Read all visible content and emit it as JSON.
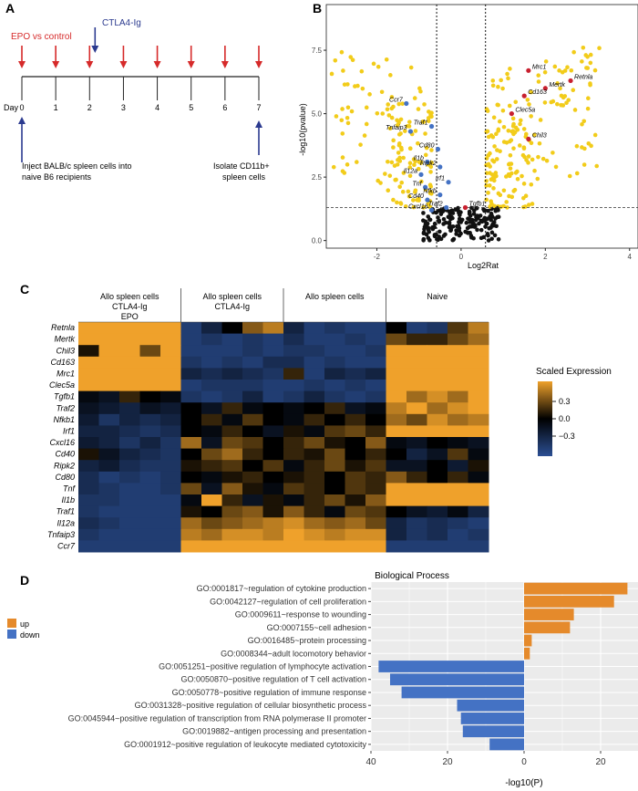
{
  "panel_labels": [
    "A",
    "B",
    "C",
    "D"
  ],
  "colors": {
    "red_arrow": "#d62a2a",
    "blue_arrow": "#2b3a8f",
    "point_sig": "#f2cc1a",
    "point_ns": "#111111",
    "point_blue": "#4472c4",
    "point_red": "#c8202f",
    "up": "#e58a2b",
    "down": "#4472c4",
    "heat_high": "#efa12b",
    "heat_mid": "#000000",
    "heat_low": "#2b4f93"
  },
  "timeline": {
    "top_red_label": "EPO vs control",
    "top_blue_label": "CTLA4-Ig",
    "day_label": "Day",
    "days": [
      "0",
      "1",
      "2",
      "3",
      "4",
      "5",
      "6",
      "7"
    ],
    "bottom_left_label": [
      "Inject BALB/c spleen cells into",
      "naive B6 recipients"
    ],
    "bottom_right_label": [
      "Isolate CD11b+",
      "spleen cells"
    ]
  },
  "chart_data": [
    {
      "type": "scatter",
      "panel": "B",
      "xlabel": "Log2Rat",
      "ylabel": "-log10(pvalue)",
      "xlim": [
        -3.2,
        4.2
      ],
      "ylim": [
        -0.3,
        9.3
      ],
      "x_ticks": [
        "-2",
        "0",
        "2",
        "4"
      ],
      "y_ticks": [
        "0.0",
        "2.5",
        "5.0",
        "7.5"
      ],
      "vlines": [
        -0.58,
        0.58
      ],
      "hline": 1.3,
      "labeled_points": [
        {
          "label": "Ccr7",
          "x": -1.3,
          "y": 5.4,
          "color": "blue"
        },
        {
          "label": "Tnfaip3",
          "x": -1.2,
          "y": 4.3,
          "color": "blue"
        },
        {
          "label": "Traf1",
          "x": -0.7,
          "y": 4.5,
          "color": "blue"
        },
        {
          "label": "Cd80",
          "x": -0.55,
          "y": 3.6,
          "color": "blue"
        },
        {
          "label": "Il1b",
          "x": -0.8,
          "y": 3.1,
          "color": "blue"
        },
        {
          "label": "Ripk2",
          "x": -0.5,
          "y": 2.9,
          "color": "blue"
        },
        {
          "label": "Il12a",
          "x": -0.95,
          "y": 2.6,
          "color": "blue"
        },
        {
          "label": "Irf1",
          "x": -0.3,
          "y": 2.3,
          "color": "blue"
        },
        {
          "label": "Tnf",
          "x": -0.85,
          "y": 2.1,
          "color": "blue"
        },
        {
          "label": "Nfkb",
          "x": -0.5,
          "y": 1.8,
          "color": "blue"
        },
        {
          "label": "Cd40",
          "x": -0.8,
          "y": 1.6,
          "color": "blue"
        },
        {
          "label": "Traf2",
          "x": -0.35,
          "y": 1.3,
          "color": "blue"
        },
        {
          "label": "Tgfb1",
          "x": 0.1,
          "y": 1.3,
          "color": "red"
        },
        {
          "label": "Cxcl16",
          "x": -0.7,
          "y": 1.2,
          "color": "blue"
        },
        {
          "label": "Mrc1",
          "x": 1.6,
          "y": 6.7,
          "color": "red"
        },
        {
          "label": "Retnla",
          "x": 2.6,
          "y": 6.3,
          "color": "red"
        },
        {
          "label": "Mertk",
          "x": 2.0,
          "y": 6.0,
          "color": "red"
        },
        {
          "label": "Cd163",
          "x": 1.5,
          "y": 5.7,
          "color": "red"
        },
        {
          "label": "Clec5a",
          "x": 1.2,
          "y": 5.0,
          "color": "red"
        },
        {
          "label": "Chil3",
          "x": 1.6,
          "y": 4.0,
          "color": "red"
        }
      ]
    },
    {
      "type": "heatmap",
      "panel": "C",
      "group_labels": [
        [
          "Allo spleen cells",
          "CTLA4-Ig",
          "EPO"
        ],
        [
          "Allo spleen cells",
          "CTLA4-Ig"
        ],
        [
          "Allo spleen cells"
        ],
        [
          "Naive"
        ]
      ],
      "columns_per_group": 5,
      "genes": [
        "Retnla",
        "Mertk",
        "Chil3",
        "Cd163",
        "Mrc1",
        "Clec5a",
        "Tgfb1",
        "Traf2",
        "Nfkb1",
        "Irf1",
        "Cxcl16",
        "Cd40",
        "Ripk2",
        "Cd80",
        "Tnf",
        "Il1b",
        "Traf1",
        "Il12a",
        "Tnfaip3",
        "Ccr7"
      ],
      "legend_title": "Scaled Expression",
      "legend_ticks": [
        "0.3",
        "0.0",
        "−0.3"
      ],
      "values": [
        [
          0.45,
          0.45,
          0.45,
          0.45,
          0.45,
          -0.35,
          -0.2,
          0.0,
          0.25,
          0.35,
          -0.2,
          -0.35,
          -0.3,
          -0.35,
          -0.35,
          0.0,
          -0.35,
          -0.3,
          0.15,
          0.35
        ],
        [
          0.45,
          0.45,
          0.45,
          0.45,
          0.45,
          -0.35,
          -0.3,
          -0.35,
          -0.3,
          -0.35,
          -0.25,
          -0.35,
          -0.35,
          -0.3,
          -0.35,
          0.2,
          0.1,
          0.1,
          0.2,
          0.3
        ],
        [
          0.05,
          0.45,
          0.45,
          0.2,
          0.45,
          -0.35,
          -0.35,
          -0.35,
          -0.3,
          -0.35,
          -0.3,
          -0.3,
          -0.35,
          -0.35,
          -0.3,
          0.45,
          0.45,
          0.45,
          0.45,
          0.45
        ],
        [
          0.45,
          0.45,
          0.45,
          0.45,
          0.45,
          -0.3,
          -0.35,
          -0.3,
          -0.35,
          -0.25,
          -0.25,
          -0.35,
          -0.3,
          -0.35,
          -0.35,
          0.45,
          0.45,
          0.45,
          0.45,
          0.45
        ],
        [
          0.45,
          0.45,
          0.45,
          0.45,
          0.45,
          -0.2,
          -0.25,
          -0.2,
          -0.25,
          -0.3,
          0.1,
          -0.35,
          -0.2,
          -0.25,
          -0.2,
          0.45,
          0.45,
          0.45,
          0.45,
          0.45
        ],
        [
          0.45,
          0.45,
          0.45,
          0.45,
          0.45,
          -0.35,
          -0.3,
          -0.3,
          -0.3,
          -0.35,
          -0.35,
          -0.3,
          -0.35,
          -0.3,
          -0.35,
          0.45,
          0.45,
          0.45,
          0.45,
          0.45
        ],
        [
          -0.05,
          -0.1,
          0.1,
          0.0,
          -0.05,
          -0.3,
          -0.35,
          -0.3,
          -0.2,
          -0.35,
          -0.3,
          -0.2,
          -0.3,
          -0.35,
          -0.3,
          0.45,
          0.3,
          0.4,
          0.3,
          0.45
        ],
        [
          -0.1,
          -0.15,
          -0.2,
          -0.1,
          -0.15,
          0.0,
          -0.1,
          0.1,
          -0.05,
          0.0,
          -0.05,
          0.0,
          0.1,
          -0.1,
          -0.05,
          0.35,
          0.45,
          0.3,
          0.4,
          0.45
        ],
        [
          -0.15,
          -0.3,
          -0.2,
          -0.25,
          -0.2,
          0.0,
          0.1,
          -0.05,
          0.15,
          0.0,
          -0.05,
          0.1,
          0.0,
          0.1,
          0.0,
          0.3,
          0.2,
          0.4,
          0.3,
          0.35
        ],
        [
          -0.2,
          -0.2,
          -0.25,
          -0.3,
          -0.25,
          0.0,
          -0.05,
          0.1,
          0.0,
          -0.1,
          0.05,
          -0.05,
          0.15,
          0.2,
          0.1,
          0.45,
          0.45,
          0.45,
          0.45,
          0.45
        ],
        [
          -0.15,
          -0.2,
          -0.3,
          -0.2,
          -0.3,
          0.3,
          -0.1,
          0.2,
          0.15,
          0.0,
          0.1,
          0.2,
          0.05,
          0.0,
          0.25,
          -0.05,
          -0.1,
          0.0,
          -0.05,
          -0.1
        ],
        [
          0.05,
          -0.1,
          -0.2,
          -0.25,
          -0.3,
          0.0,
          0.2,
          0.3,
          0.1,
          0.0,
          0.1,
          0.05,
          0.2,
          0.0,
          0.1,
          0.0,
          -0.2,
          -0.1,
          0.15,
          -0.05
        ],
        [
          -0.2,
          -0.15,
          -0.25,
          -0.3,
          -0.3,
          0.05,
          0.1,
          0.15,
          0.0,
          0.15,
          -0.05,
          0.1,
          0.2,
          0.05,
          0.15,
          -0.1,
          -0.1,
          0.0,
          -0.15,
          0.05
        ],
        [
          -0.25,
          -0.35,
          -0.3,
          -0.35,
          -0.3,
          0.0,
          -0.05,
          0.05,
          0.1,
          0.0,
          0.05,
          0.1,
          0.0,
          0.15,
          0.1,
          0.25,
          0.1,
          0.0,
          0.1,
          -0.05
        ],
        [
          -0.25,
          -0.3,
          -0.35,
          -0.35,
          -0.3,
          0.2,
          -0.1,
          0.25,
          0.05,
          -0.05,
          0.15,
          0.1,
          0.0,
          0.15,
          0.1,
          0.45,
          0.45,
          0.45,
          0.45,
          0.45
        ],
        [
          -0.3,
          -0.3,
          -0.35,
          -0.35,
          -0.35,
          -0.05,
          0.45,
          0.1,
          -0.1,
          0.05,
          -0.05,
          0.1,
          0.2,
          0.05,
          0.25,
          0.45,
          0.45,
          0.45,
          0.45,
          0.45
        ],
        [
          -0.3,
          -0.35,
          -0.35,
          -0.35,
          -0.35,
          0.05,
          0.0,
          0.2,
          0.25,
          0.05,
          0.25,
          0.1,
          -0.05,
          0.2,
          0.15,
          0.0,
          -0.1,
          -0.15,
          -0.05,
          -0.2
        ],
        [
          -0.25,
          -0.3,
          -0.35,
          -0.35,
          -0.35,
          0.3,
          0.2,
          0.25,
          0.3,
          0.35,
          0.4,
          0.3,
          0.25,
          0.3,
          0.2,
          -0.2,
          -0.3,
          -0.25,
          -0.3,
          -0.35
        ],
        [
          -0.3,
          -0.35,
          -0.35,
          -0.35,
          -0.35,
          0.35,
          0.3,
          0.4,
          0.4,
          0.35,
          0.45,
          0.4,
          0.35,
          0.4,
          0.4,
          -0.2,
          -0.3,
          -0.25,
          -0.35,
          -0.3
        ],
        [
          -0.35,
          -0.35,
          -0.35,
          -0.35,
          -0.35,
          0.45,
          0.45,
          0.45,
          0.45,
          0.45,
          0.45,
          0.45,
          0.45,
          0.45,
          0.45,
          -0.35,
          -0.35,
          -0.35,
          -0.35,
          -0.35
        ]
      ]
    },
    {
      "type": "bar",
      "panel": "D",
      "orientation": "horizontal",
      "title": "Biological Process",
      "xlabel": "-log10(P)",
      "x_ticks": [
        "40",
        "20",
        "0",
        "20"
      ],
      "legend": [
        {
          "name": "up",
          "color": "up"
        },
        {
          "name": "down",
          "color": "down"
        }
      ],
      "categories": [
        "GO:0001817~regulation of cytokine production",
        "GO:0042127~regulation of cell proliferation",
        "GO:0009611~response to wounding",
        "GO:0007155~cell adhesion",
        "GO:0016485~protein processing",
        "GO:0008344~adult locomotory behavior",
        "GO:0051251~positive regulation of lymphocyte activation",
        "GO:0050870~positive regulation of T cell activation",
        "GO:0050778~positive regulation of immune response",
        "GO:0031328~positive regulation of cellular biosynthetic process",
        "GO:0045944~positive regulation of transcription from RNA polymerase II promoter",
        "GO:0019882~antigen processing and presentation",
        "GO:0001912~positive regulation of leukocyte mediated cytotoxicity"
      ],
      "values": [
        27,
        23.5,
        13,
        12,
        2,
        1.5,
        -38,
        -35,
        -32,
        -17.5,
        -16.5,
        -16,
        -9
      ],
      "direction": [
        "up",
        "up",
        "up",
        "up",
        "up",
        "up",
        "down",
        "down",
        "down",
        "down",
        "down",
        "down",
        "down"
      ]
    }
  ]
}
